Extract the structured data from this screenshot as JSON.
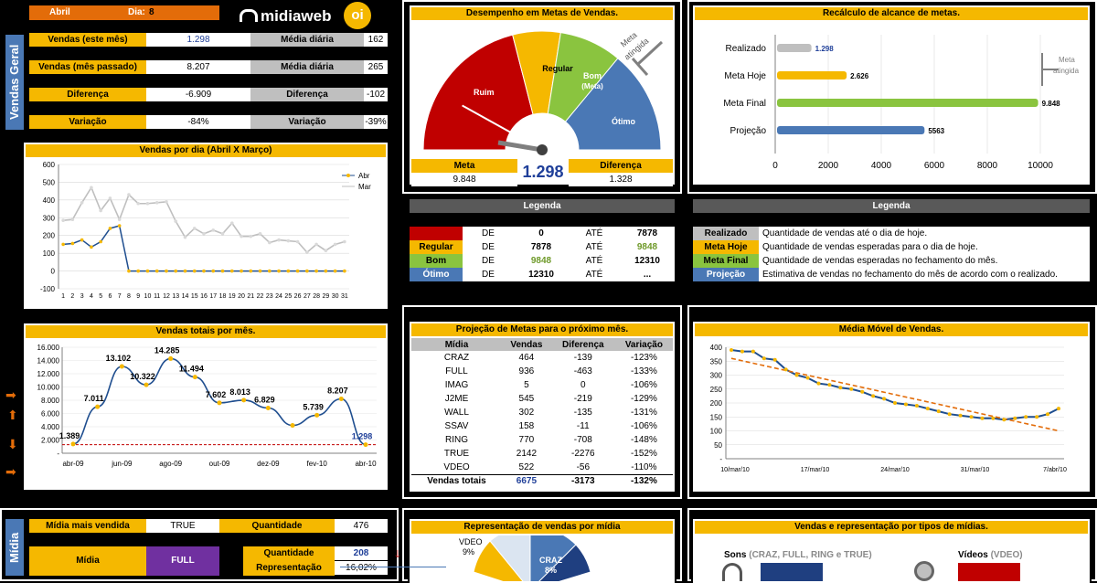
{
  "header": {
    "month": "Abril",
    "day_label": "Dia:",
    "day": "8",
    "logo_text": "midiaweb",
    "oi": "oi"
  },
  "vendas_geral": {
    "side_label": "Vendas Geral",
    "rows": [
      {
        "label": "Vendas (este mês)",
        "value": "1.298",
        "label2": "Média diária",
        "value2": "162"
      },
      {
        "label": "Vendas (mês passado)",
        "value": "8.207",
        "label2": "Média diária",
        "value2": "265"
      },
      {
        "label": "Diferença",
        "value": "-6.909",
        "label2": "Diferença",
        "value2": "-102"
      },
      {
        "label": "Variação",
        "value": "-84%",
        "label2": "Variação",
        "value2": "-39%"
      }
    ]
  },
  "gauge": {
    "title": "Desempenho em Metas de Vendas.",
    "bands": [
      "Ruim",
      "Regular",
      "Bom (Meta)",
      "Ótimo"
    ],
    "meta_atingida": "Meta atingida",
    "meta_label": "Meta",
    "meta_value": "9.848",
    "center_value": "1.298",
    "dif_label": "Diferença",
    "dif_value": "1.328",
    "colors": [
      "#c00000",
      "#f5b800",
      "#8ac43f",
      "#4a78b5"
    ],
    "value_fraction": 0.05
  },
  "recalc": {
    "title": "Recálculo de alcance de metas.",
    "meta_atingida": "Meta atingida",
    "axis_ticks": [
      "0",
      "2000",
      "4000",
      "6000",
      "8000",
      "10000"
    ],
    "bars": [
      {
        "label": "Realizado",
        "value": 1298,
        "text": "1.298",
        "color": "#bfbfbf"
      },
      {
        "label": "Meta Hoje",
        "value": 2626,
        "text": "2.626",
        "color": "#f5b800"
      },
      {
        "label": "Meta Final",
        "value": 9848,
        "text": "9.848",
        "color": "#8ac43f"
      },
      {
        "label": "Projeção",
        "value": 5563,
        "text": "5563",
        "color": "#4a78b5"
      }
    ]
  },
  "legend1": {
    "title": "Legenda",
    "rows": [
      {
        "name": "Ruim",
        "de": "DE",
        "from": "0",
        "ate": "ATÉ",
        "to": "7878",
        "color": "#c00000",
        "fromcolor": "#000",
        "tocolor": "#000"
      },
      {
        "name": "Regular",
        "de": "DE",
        "from": "7878",
        "ate": "ATÉ",
        "to": "9848",
        "color": "#f5b800",
        "fromcolor": "#000",
        "tocolor": "#6f9a2a"
      },
      {
        "name": "Bom",
        "de": "DE",
        "from": "9848",
        "ate": "ATÉ",
        "to": "12310",
        "color": "#8ac43f",
        "fromcolor": "#6f9a2a",
        "tocolor": "#000"
      },
      {
        "name": "Ótimo",
        "de": "DE",
        "from": "12310",
        "ate": "ATÉ",
        "to": "...",
        "color": "#4a78b5",
        "fromcolor": "#000",
        "tocolor": "#000"
      }
    ]
  },
  "legend2": {
    "title": "Legenda",
    "rows": [
      {
        "name": "Realizado",
        "desc": "Quantidade de vendas até o dia de hoje.",
        "color": "#bfbfbf"
      },
      {
        "name": "Meta Hoje",
        "desc": "Quantidade de vendas esperadas para o dia de hoje.",
        "color": "#f5b800"
      },
      {
        "name": "Meta Final",
        "desc": "Quantidade de vendas esperadas no fechamento do mês.",
        "color": "#8ac43f"
      },
      {
        "name": "Projeção",
        "desc": "Estimativa de vendas no fechamento do mês de acordo com o realizado.",
        "color": "#4a78b5"
      }
    ]
  },
  "chart_data": [
    {
      "type": "line",
      "title": "Vendas por dia (Abril X Março)",
      "ylim": [
        -100,
        600
      ],
      "yticks": [
        "600",
        "500",
        "400",
        "300",
        "200",
        "100",
        "0",
        "-100"
      ],
      "x": [
        "1",
        "2",
        "3",
        "4",
        "5",
        "6",
        "7",
        "8",
        "9",
        "10",
        "11",
        "12",
        "13",
        "14",
        "15",
        "16",
        "17",
        "18",
        "19",
        "20",
        "21",
        "22",
        "23",
        "24",
        "25",
        "26",
        "27",
        "28",
        "29",
        "30",
        "31"
      ],
      "series": [
        {
          "name": "Abr",
          "values": [
            150,
            155,
            175,
            135,
            165,
            240,
            255,
            0,
            0,
            0,
            0,
            0,
            0,
            0,
            0,
            0,
            0,
            0,
            0,
            0,
            0,
            0,
            0,
            0,
            0,
            0,
            0,
            0,
            0,
            0,
            0
          ]
        },
        {
          "name": "Mar",
          "values": [
            285,
            290,
            385,
            470,
            340,
            410,
            290,
            430,
            380,
            380,
            385,
            390,
            280,
            190,
            240,
            210,
            230,
            210,
            270,
            195,
            195,
            210,
            160,
            175,
            170,
            165,
            105,
            150,
            115,
            150,
            165
          ]
        }
      ]
    },
    {
      "type": "line",
      "title": "Vendas totais por mês.",
      "yticks": [
        "16.000",
        "14.000",
        "12.000",
        "10.000",
        "8.000",
        "6.000",
        "4.000",
        "2.000",
        "-"
      ],
      "ylim": [
        0,
        16000
      ],
      "x": [
        "abr-09",
        "mai-09",
        "jun-09",
        "jul-09",
        "ago-09",
        "set-09",
        "out-09",
        "nov-09",
        "dez-09",
        "jan-10",
        "fev-10",
        "mar-10",
        "abr-10"
      ],
      "xticks": [
        "abr-09",
        "jun-09",
        "ago-09",
        "out-09",
        "dez-09",
        "fev-10",
        "abr-10"
      ],
      "series": [
        {
          "name": "Vendas",
          "values": [
            1389,
            7011,
            13102,
            10322,
            14285,
            11494,
            7602,
            8013,
            6829,
            4200,
            5739,
            8207,
            1298
          ]
        }
      ],
      "labels": [
        "1.389",
        "7.011",
        "13.102",
        "10.322",
        "14.285",
        "11.494",
        "7.602",
        "8.013",
        "6.829",
        "",
        "5.739",
        "8.207",
        "1.298"
      ],
      "meta": 1300
    },
    {
      "type": "line",
      "title": "Média Móvel de Vendas.",
      "ylim": [
        0,
        400
      ],
      "yticks": [
        "400",
        "350",
        "300",
        "250",
        "200",
        "150",
        "100",
        "50",
        "-"
      ],
      "xticks": [
        "10/mar/10",
        "17/mar/10",
        "24/mar/10",
        "31/mar/10",
        "7/abr/10"
      ],
      "series": [
        {
          "name": "Média",
          "values": [
            390,
            385,
            385,
            360,
            355,
            320,
            300,
            290,
            270,
            265,
            255,
            250,
            240,
            225,
            215,
            200,
            195,
            190,
            180,
            170,
            160,
            155,
            150,
            145,
            145,
            140,
            145,
            150,
            150,
            160,
            180
          ]
        }
      ]
    }
  ],
  "projecao": {
    "title": "Projeção de Metas para o próximo mês.",
    "headers": [
      "Mídia",
      "Vendas",
      "Diferença",
      "Variação"
    ],
    "rows": [
      [
        "CRAZ",
        "464",
        "-139",
        "-123%"
      ],
      [
        "FULL",
        "936",
        "-463",
        "-133%"
      ],
      [
        "IMAG",
        "5",
        "0",
        "-106%"
      ],
      [
        "J2ME",
        "545",
        "-219",
        "-129%"
      ],
      [
        "WALL",
        "302",
        "-135",
        "-131%"
      ],
      [
        "SSAV",
        "158",
        "-11",
        "-106%"
      ],
      [
        "RING",
        "770",
        "-708",
        "-148%"
      ],
      [
        "TRUE",
        "2142",
        "-2276",
        "-152%"
      ],
      [
        "VDEO",
        "522",
        "-56",
        "-110%"
      ]
    ],
    "total": [
      "Vendas totais",
      "6675",
      "-3173",
      "-132%"
    ]
  },
  "midia": {
    "side_label": "Mídia",
    "mais_vendida_label": "Mídia mais vendida",
    "mais_vendida": "TRUE",
    "quantidade_label": "Quantidade",
    "quantidade": "476",
    "midia_label": "Mídia",
    "midia": "FULL",
    "qtd_label": "Quantidade",
    "qtd": "208",
    "rep_label": "Representação",
    "rep": "16,02%"
  },
  "pie": {
    "title": "Representação de vendas por mídia",
    "labels": [
      {
        "name": "VDEO",
        "pct": "9%"
      },
      {
        "name": "CRAZ",
        "pct": "8%"
      }
    ]
  },
  "tipos": {
    "title": "Vendas e representação por tipos de mídias.",
    "sons": "Sons",
    "sons_detail": "(CRAZ, FULL, RING e TRUE)",
    "videos": "Vídeos",
    "videos_detail": "(VDEO)"
  }
}
